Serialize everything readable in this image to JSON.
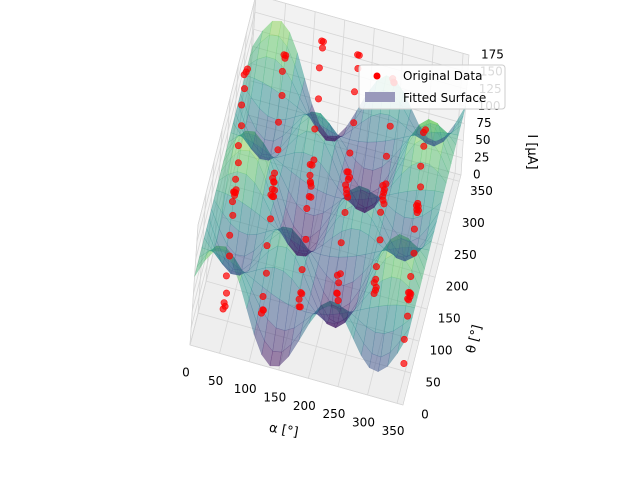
{
  "chart_data": {
    "type": "scatter",
    "subtype": "3d-scatter-with-fitted-surface",
    "title": "",
    "xlabel": "α [°]",
    "ylabel": "θ [°]",
    "zlabel": "I [μA]",
    "xlim": [
      0,
      360
    ],
    "ylim": [
      0,
      360
    ],
    "zlim": [
      0,
      175
    ],
    "x_ticks": [
      "0",
      "50",
      "100",
      "150",
      "200",
      "250",
      "300",
      "350"
    ],
    "y_ticks": [
      "0",
      "50",
      "100",
      "150",
      "200",
      "250",
      "300",
      "350"
    ],
    "z_ticks": [
      "0",
      "25",
      "50",
      "75",
      "100",
      "125",
      "150",
      "175"
    ],
    "grid": true,
    "legend_position": "top-right",
    "legend": [
      {
        "label": "Original Data",
        "marker": "circle",
        "color": "#ff0000"
      },
      {
        "label": "Fitted Surface",
        "marker": "patch",
        "color": "#9999bb"
      }
    ],
    "surface": {
      "label": "Fitted Surface",
      "colormap": "viridis",
      "alpha": 0.5,
      "model": "I = 75 + 55·sin(2α)·cos(2θ) + 25·cos(α)"
    },
    "series": [
      {
        "name": "Original Data",
        "color": "#ff0000",
        "points": [
          [
            0,
            330,
            95
          ],
          [
            0,
            320,
            100
          ],
          [
            0,
            305,
            110
          ],
          [
            5,
            290,
            105
          ],
          [
            5,
            275,
            95
          ],
          [
            10,
            260,
            80
          ],
          [
            10,
            245,
            65
          ],
          [
            15,
            230,
            55
          ],
          [
            15,
            215,
            45
          ],
          [
            20,
            200,
            45
          ],
          [
            20,
            185,
            55
          ],
          [
            25,
            170,
            70
          ],
          [
            25,
            155,
            85
          ],
          [
            30,
            140,
            95
          ],
          [
            30,
            125,
            100
          ],
          [
            35,
            110,
            95
          ],
          [
            35,
            95,
            80
          ],
          [
            40,
            80,
            65
          ],
          [
            40,
            65,
            50
          ],
          [
            45,
            50,
            40
          ],
          [
            45,
            35,
            40
          ],
          [
            50,
            20,
            50
          ],
          [
            50,
            5,
            60
          ],
          [
            60,
            340,
            120
          ],
          [
            60,
            325,
            135
          ],
          [
            65,
            310,
            145
          ],
          [
            65,
            295,
            140
          ],
          [
            70,
            280,
            120
          ],
          [
            70,
            265,
            95
          ],
          [
            75,
            250,
            70
          ],
          [
            75,
            235,
            50
          ],
          [
            80,
            220,
            40
          ],
          [
            80,
            205,
            45
          ],
          [
            85,
            190,
            60
          ],
          [
            85,
            175,
            85
          ],
          [
            90,
            160,
            110
          ],
          [
            90,
            145,
            130
          ],
          [
            95,
            130,
            140
          ],
          [
            95,
            115,
            135
          ],
          [
            100,
            100,
            115
          ],
          [
            100,
            85,
            90
          ],
          [
            105,
            70,
            65
          ],
          [
            105,
            55,
            45
          ],
          [
            110,
            40,
            40
          ],
          [
            110,
            25,
            50
          ],
          [
            115,
            10,
            70
          ],
          [
            120,
            345,
            150
          ],
          [
            120,
            330,
            165
          ],
          [
            125,
            315,
            170
          ],
          [
            125,
            300,
            155
          ],
          [
            130,
            285,
            125
          ],
          [
            130,
            270,
            95
          ],
          [
            135,
            255,
            65
          ],
          [
            135,
            240,
            45
          ],
          [
            140,
            225,
            40
          ],
          [
            140,
            210,
            55
          ],
          [
            145,
            195,
            85
          ],
          [
            145,
            180,
            115
          ],
          [
            150,
            165,
            145
          ],
          [
            150,
            150,
            160
          ],
          [
            155,
            135,
            150
          ],
          [
            155,
            120,
            125
          ],
          [
            160,
            105,
            95
          ],
          [
            160,
            90,
            65
          ],
          [
            165,
            75,
            45
          ],
          [
            165,
            60,
            40
          ],
          [
            170,
            45,
            55
          ],
          [
            170,
            30,
            80
          ],
          [
            175,
            15,
            105
          ],
          [
            180,
            350,
            140
          ],
          [
            180,
            335,
            155
          ],
          [
            185,
            320,
            150
          ],
          [
            185,
            305,
            130
          ],
          [
            190,
            290,
            100
          ],
          [
            190,
            275,
            70
          ],
          [
            195,
            260,
            50
          ],
          [
            195,
            245,
            40
          ],
          [
            200,
            230,
            50
          ],
          [
            200,
            215,
            75
          ],
          [
            205,
            200,
            105
          ],
          [
            205,
            185,
            130
          ],
          [
            210,
            170,
            145
          ],
          [
            210,
            155,
            140
          ],
          [
            215,
            140,
            115
          ],
          [
            215,
            125,
            85
          ],
          [
            220,
            110,
            55
          ],
          [
            220,
            95,
            40
          ],
          [
            225,
            80,
            45
          ],
          [
            225,
            65,
            70
          ],
          [
            230,
            50,
            100
          ],
          [
            230,
            35,
            125
          ],
          [
            240,
            355,
            110
          ],
          [
            240,
            340,
            130
          ],
          [
            245,
            325,
            140
          ],
          [
            245,
            310,
            130
          ],
          [
            250,
            295,
            105
          ],
          [
            250,
            280,
            75
          ],
          [
            255,
            265,
            50
          ],
          [
            255,
            250,
            40
          ],
          [
            260,
            235,
            50
          ],
          [
            260,
            220,
            75
          ],
          [
            265,
            205,
            100
          ],
          [
            265,
            190,
            120
          ],
          [
            270,
            175,
            125
          ],
          [
            270,
            160,
            110
          ],
          [
            275,
            145,
            85
          ],
          [
            275,
            130,
            60
          ],
          [
            280,
            115,
            45
          ],
          [
            280,
            100,
            50
          ],
          [
            285,
            85,
            70
          ],
          [
            285,
            70,
            95
          ],
          [
            290,
            55,
            115
          ],
          [
            300,
            340,
            70
          ],
          [
            300,
            325,
            80
          ],
          [
            305,
            310,
            75
          ],
          [
            305,
            295,
            60
          ],
          [
            310,
            280,
            45
          ],
          [
            310,
            265,
            35
          ],
          [
            315,
            250,
            40
          ],
          [
            315,
            235,
            55
          ],
          [
            320,
            220,
            75
          ],
          [
            320,
            205,
            90
          ],
          [
            325,
            190,
            95
          ],
          [
            325,
            175,
            85
          ],
          [
            330,
            160,
            65
          ],
          [
            330,
            145,
            45
          ],
          [
            335,
            130,
            35
          ],
          [
            335,
            115,
            40
          ],
          [
            340,
            100,
            60
          ],
          [
            340,
            85,
            80
          ],
          [
            345,
            70,
            95
          ],
          [
            345,
            55,
            100
          ],
          [
            350,
            40,
            90
          ],
          [
            350,
            25,
            70
          ],
          [
            355,
            10,
            50
          ]
        ]
      }
    ]
  }
}
